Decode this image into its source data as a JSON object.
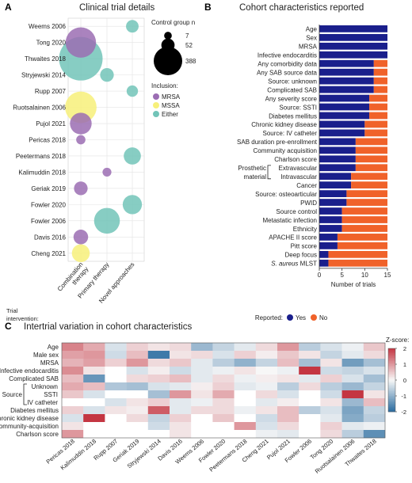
{
  "panels": {
    "a": {
      "letter": "A",
      "title": "Clinical trial details"
    },
    "b": {
      "letter": "B",
      "title": "Cohort characteristics reported"
    },
    "c": {
      "letter": "C",
      "title": "Intertrial variation in cohort characteristics"
    }
  },
  "chart_data": [
    {
      "type": "scatter",
      "panel": "A",
      "title": "Clinical trial details",
      "y_categories": [
        "Weems 2006",
        "Tong 2020",
        "Thwaites 2018",
        "Stryjewski 2014",
        "Rupp 2007",
        "Ruotsalainen 2006",
        "Pujol 2021",
        "Pericas 2018",
        "Peetermans 2018",
        "Kalimuddin 2018",
        "Geriak 2019",
        "Fowler 2020",
        "Fowler 2006",
        "Davis 2016",
        "Cheng  2021"
      ],
      "x_categories": [
        "Combination therapy",
        "Primary therapy",
        "Novel approaches"
      ],
      "x_axis_prefix": "Trial intervention:",
      "size_legend": {
        "title": "Control group n",
        "values": [
          7,
          52,
          388
        ]
      },
      "color_legend": {
        "title": "Inclusion:",
        "entries": [
          {
            "name": "MRSA",
            "color": "#9b6db3"
          },
          {
            "name": "MSSA",
            "color": "#f7f07a"
          },
          {
            "name": "Either",
            "color": "#72c4b8"
          }
        ]
      },
      "points": [
        {
          "trial": "Weems 2006",
          "intervention": "Novel approaches",
          "inclusion": "Either",
          "n": 20
        },
        {
          "trial": "Tong 2020",
          "intervention": "Combination therapy",
          "inclusion": "MRSA",
          "n": 175
        },
        {
          "trial": "Thwaites 2018",
          "intervention": "Combination therapy",
          "inclusion": "Either",
          "n": 388
        },
        {
          "trial": "Stryjewski 2014",
          "intervention": "Primary therapy",
          "inclusion": "Either",
          "n": 25
        },
        {
          "trial": "Rupp 2007",
          "intervention": "Novel approaches",
          "inclusion": "Either",
          "n": 15
        },
        {
          "trial": "Ruotsalainen 2006",
          "intervention": "Combination therapy",
          "inclusion": "MSSA",
          "n": 190
        },
        {
          "trial": "Pujol 2021",
          "intervention": "Combination therapy",
          "inclusion": "MRSA",
          "n": 80
        },
        {
          "trial": "Pericas 2018",
          "intervention": "Combination therapy",
          "inclusion": "MRSA",
          "n": 8
        },
        {
          "trial": "Peetermans 2018",
          "intervention": "Novel approaches",
          "inclusion": "Either",
          "n": 45
        },
        {
          "trial": "Kalimuddin 2018",
          "intervention": "Primary therapy",
          "inclusion": "MRSA",
          "n": 7
        },
        {
          "trial": "Geriak 2019",
          "intervention": "Combination therapy",
          "inclusion": "MRSA",
          "n": 25
        },
        {
          "trial": "Fowler 2020",
          "intervention": "Novel approaches",
          "inclusion": "Either",
          "n": 60
        },
        {
          "trial": "Fowler 2006",
          "intervention": "Primary therapy",
          "inclusion": "Either",
          "n": 120
        },
        {
          "trial": "Davis 2016",
          "intervention": "Combination therapy",
          "inclusion": "MRSA",
          "n": 30
        },
        {
          "trial": "Cheng  2021",
          "intervention": "Combination therapy",
          "inclusion": "MSSA",
          "n": 50
        }
      ]
    },
    {
      "type": "bar",
      "orientation": "horizontal",
      "stacked": true,
      "panel": "B",
      "title": "Cohort characteristics reported",
      "xlabel": "Number of trials",
      "xlim": [
        0,
        15
      ],
      "x_ticks": [
        0,
        5,
        10,
        15
      ],
      "legend_title": "Reported:",
      "categories": [
        "Age",
        "Sex",
        "MRSA",
        "Infective endocarditis",
        "Any comorbidity data",
        "Any SAB source data",
        "Source: unknown",
        "Complicated SAB",
        "Any severity score",
        "Source: SSTI",
        "Diabetes mellitus",
        "Chronic kidney disease",
        "Source: IV catheter",
        "SAB duration pre-enrollment",
        "Community acquisition",
        "Charlson score",
        "Extravascular",
        "Intravascular",
        "Cancer",
        "Source: osteoarticular",
        "PWID",
        "Source control",
        "Metastatic infection",
        "Ethnicity",
        "APACHE II score",
        "Pitt score",
        "Deep focus",
        "S. aureus MLST"
      ],
      "bracket_label": [
        "Prosthetic",
        "material"
      ],
      "series": [
        {
          "name": "Yes",
          "color": "#1a1f8c",
          "values": [
            15,
            15,
            15,
            15,
            12,
            12,
            12,
            12,
            11,
            11,
            11,
            10,
            10,
            8,
            8,
            8,
            8,
            7,
            7,
            6,
            6,
            5,
            5,
            5,
            4,
            4,
            2,
            2
          ]
        },
        {
          "name": "No",
          "color": "#f0622a",
          "values": [
            0,
            0,
            0,
            0,
            3,
            3,
            3,
            3,
            4,
            4,
            4,
            5,
            5,
            7,
            7,
            7,
            7,
            8,
            8,
            9,
            9,
            10,
            10,
            10,
            11,
            11,
            13,
            13
          ]
        }
      ]
    },
    {
      "type": "heatmap",
      "panel": "C",
      "title": "Intertrial variation in cohort characteristics",
      "legend_title": "Z-score:",
      "zlim": [
        -2,
        2
      ],
      "z_ticks": [
        2,
        1,
        0,
        -1,
        -2
      ],
      "columns": [
        "Pericas 2018",
        "Kalimuddin 2018",
        "Rupp 2007",
        "Geriak 2019",
        "Stryjewski 2014",
        "Davis 2016",
        "Weems 2006",
        "Fowler 2020",
        "Peetermans 2018",
        "Cheng 2021",
        "Pujol 2021",
        "Fowler 2006",
        "Tong 2020",
        "Ruotsalainen 2006",
        "Thwaites 2018"
      ],
      "rows": [
        "Age",
        "Male sex",
        "MRSA",
        "Infective endocarditis",
        "Complicated SAB",
        "Unknown",
        "SSTI",
        "IV catheter",
        "Diabetes mellitus",
        "Chronic kidney disease",
        "Community-acquisition",
        "Charlson score"
      ],
      "row_group": {
        "label": "Source",
        "rows": [
          "Unknown",
          "SSTI",
          "IV catheter"
        ]
      },
      "values": [
        [
          1.2,
          0.8,
          -0.3,
          0.4,
          0.2,
          0.3,
          -0.9,
          -0.5,
          -0.2,
          0.3,
          1.0,
          -0.6,
          -0.3,
          -0.1,
          0.5
        ],
        [
          0.9,
          1.0,
          -0.4,
          0.6,
          -1.8,
          0.2,
          0.3,
          -0.3,
          0.4,
          0.1,
          0.5,
          0.2,
          -0.5,
          -0.2,
          0.3
        ],
        [
          0.7,
          0.9,
          0.4,
          1.0,
          0.3,
          0.5,
          -0.2,
          -0.6,
          -1.0,
          -0.5,
          0.6,
          -0.8,
          0.2,
          -1.3,
          -0.8
        ],
        [
          1.1,
          0.2,
          null,
          -0.3,
          0.1,
          -0.4,
          -0.2,
          -0.1,
          0.2,
          0.0,
          -0.1,
          2.0,
          -0.4,
          -0.5,
          -0.3
        ],
        [
          0.6,
          -1.4,
          null,
          0.3,
          0.4,
          0.6,
          -0.2,
          0.3,
          -0.1,
          0.1,
          0.2,
          -0.2,
          0.4,
          -0.3,
          -0.8
        ],
        [
          0.8,
          0.6,
          -0.7,
          -0.8,
          -0.3,
          -0.2,
          0.1,
          0.4,
          -0.2,
          -0.1,
          -0.6,
          0.3,
          -0.6,
          -0.9,
          -0.5
        ],
        [
          0.5,
          -0.3,
          null,
          null,
          -0.8,
          1.0,
          0.2,
          0.8,
          null,
          0.3,
          -0.3,
          null,
          -0.4,
          2.2,
          0.2
        ],
        [
          null,
          null,
          -0.3,
          0.2,
          0.4,
          -0.2,
          -0.1,
          0.3,
          null,
          -0.2,
          0.1,
          null,
          0.2,
          -0.9,
          0.6
        ],
        [
          0.4,
          -0.3,
          0.2,
          0.1,
          1.6,
          -0.2,
          0.3,
          0.3,
          -0.1,
          0.2,
          0.6,
          -0.6,
          -0.3,
          -1.2,
          -0.5
        ],
        [
          -0.3,
          2.1,
          null,
          0.3,
          -0.5,
          0.4,
          null,
          0.5,
          null,
          -0.4,
          0.6,
          null,
          -0.2,
          -1.1,
          -0.6
        ],
        [
          0.2,
          null,
          null,
          null,
          -0.4,
          0.2,
          null,
          null,
          1.0,
          -0.3,
          0.3,
          null,
          0.4,
          -0.2,
          -0.1
        ],
        [
          1.0,
          null,
          null,
          null,
          null,
          0.2,
          null,
          null,
          null,
          -0.1,
          -0.2,
          null,
          0.3,
          -0.6,
          -1.5
        ]
      ]
    }
  ]
}
